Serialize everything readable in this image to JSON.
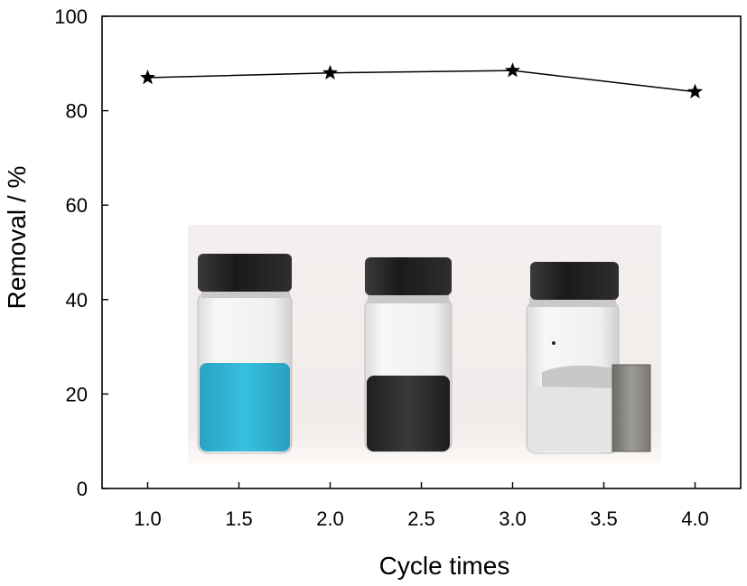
{
  "chart_data": {
    "type": "line",
    "xlabel": "Cycle times",
    "ylabel": "Removal / %",
    "xlim": [
      0.75,
      4.25
    ],
    "ylim": [
      0,
      100
    ],
    "xticks": [
      "1.0",
      "1.5",
      "2.0",
      "2.5",
      "3.0",
      "3.5",
      "4.0"
    ],
    "yticks": [
      "0",
      "20",
      "40",
      "60",
      "80",
      "100"
    ],
    "x": [
      1.0,
      2.0,
      3.0,
      4.0
    ],
    "series": [
      {
        "values": [
          87.0,
          88.0,
          88.5,
          84.0
        ],
        "marker": "star",
        "color": "#000000"
      }
    ],
    "grid": false,
    "inset_image": {
      "description_icon": "vials-photo",
      "colors": {
        "dye_solution": "#2fb3d6",
        "adsorbent_suspension": "#2a2a2c",
        "clear_solution": "#e3e4e2",
        "vial_cap": "#1c1c1e",
        "magnet": "#8b8a85"
      }
    }
  }
}
